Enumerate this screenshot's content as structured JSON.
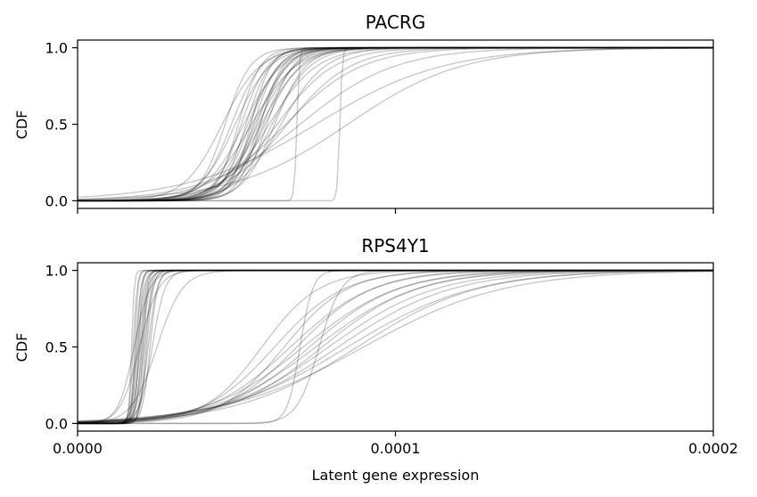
{
  "figure": {
    "xlabel": "Latent gene expression"
  },
  "chart_data": [
    {
      "type": "line",
      "title": "PACRG",
      "ylabel": "CDF",
      "xlabel": "",
      "xlim": [
        0,
        0.0002
      ],
      "ylim": [
        -0.05,
        1.05
      ],
      "xticks": [
        0,
        0.0001,
        0.0002
      ],
      "xtick_labels": [
        "",
        "",
        ""
      ],
      "yticks": [
        0,
        0.5,
        1
      ],
      "ytick_labels": [
        "0.0",
        "0.5",
        "1.0"
      ],
      "line_color": "#000000",
      "line_opacity": 0.2,
      "series_kind": "logistic",
      "series": [
        {
          "mid": 4.64e-05,
          "scale": 4e-06
        },
        {
          "mid": 4.84e-05,
          "scale": 4.8e-06
        },
        {
          "mid": 4.96e-05,
          "scale": 5.5e-06
        },
        {
          "mid": 5.06e-05,
          "scale": 3.5e-06
        },
        {
          "mid": 5.15e-05,
          "scale": 4.2e-06
        },
        {
          "mid": 5.23e-05,
          "scale": 6e-06
        },
        {
          "mid": 5.3e-05,
          "scale": 3.8e-06
        },
        {
          "mid": 5.36e-05,
          "scale": 5e-06
        },
        {
          "mid": 5.42e-05,
          "scale": 4.5e-06
        },
        {
          "mid": 5.48e-05,
          "scale": 7e-06
        },
        {
          "mid": 5.53e-05,
          "scale": 4e-06
        },
        {
          "mid": 5.58e-05,
          "scale": 5.2e-06
        },
        {
          "mid": 5.63e-05,
          "scale": 4.6e-06
        },
        {
          "mid": 5.68e-05,
          "scale": 5.8e-06
        },
        {
          "mid": 5.73e-05,
          "scale": 4.3e-06
        },
        {
          "mid": 5.78e-05,
          "scale": 6.5e-06
        },
        {
          "mid": 5.84e-05,
          "scale": 4.9e-06
        },
        {
          "mid": 5.9e-05,
          "scale": 5.6e-06
        },
        {
          "mid": 5.96e-05,
          "scale": 4.1e-06
        },
        {
          "mid": 6.03e-05,
          "scale": 7.5e-06
        },
        {
          "mid": 6.12e-05,
          "scale": 6e-06
        },
        {
          "mid": 6.2e-05,
          "scale": 5e-06
        },
        {
          "mid": 6.28e-05,
          "scale": 9e-06
        },
        {
          "mid": 6.4e-05,
          "scale": 7e-06
        },
        {
          "mid": 6.55e-05,
          "scale": 1.2e-05
        },
        {
          "mid": 6.6e-05,
          "scale": 1e-05
        },
        {
          "mid": 7e-05,
          "scale": 1.5e-05
        },
        {
          "mid": 7.5e-05,
          "scale": 2e-05
        },
        {
          "mid": 8.5e-05,
          "scale": 1.8e-05
        },
        {
          "mid": 6.9e-05,
          "scale": 4e-07
        },
        {
          "mid": 8.25e-05,
          "scale": 4e-07
        },
        {
          "mid": 4.55e-05,
          "scale": 6e-06
        },
        {
          "mid": 5.45e-05,
          "scale": 3.2e-06
        },
        {
          "mid": 5.75e-05,
          "scale": 3.6e-06
        }
      ]
    },
    {
      "type": "line",
      "title": "RPS4Y1",
      "ylabel": "CDF",
      "xlabel": "Latent gene expression",
      "xlim": [
        0,
        0.0002
      ],
      "ylim": [
        -0.05,
        1.05
      ],
      "xticks": [
        0,
        0.0001,
        0.0002
      ],
      "xtick_labels": [
        "0.0000",
        "0.0001",
        "0.0002"
      ],
      "yticks": [
        0,
        0.5,
        1
      ],
      "ytick_labels": [
        "0.0",
        "0.5",
        "1.0"
      ],
      "line_color": "#000000",
      "line_opacity": 0.2,
      "series_kind": "logistic",
      "series": [
        {
          "mid": 1.7e-05,
          "scale": 4e-07
        },
        {
          "mid": 1.75e-05,
          "scale": 6e-07
        },
        {
          "mid": 1.8e-05,
          "scale": 5e-07
        },
        {
          "mid": 1.83e-05,
          "scale": 8e-07
        },
        {
          "mid": 1.86e-05,
          "scale": 7e-07
        },
        {
          "mid": 1.89e-05,
          "scale": 1e-06
        },
        {
          "mid": 1.92e-05,
          "scale": 6e-07
        },
        {
          "mid": 1.95e-05,
          "scale": 9e-07
        },
        {
          "mid": 1.98e-05,
          "scale": 1.2e-06
        },
        {
          "mid": 2.01e-05,
          "scale": 8e-07
        },
        {
          "mid": 2.04e-05,
          "scale": 1.1e-06
        },
        {
          "mid": 2.07e-05,
          "scale": 7e-07
        },
        {
          "mid": 2.1e-05,
          "scale": 1.3e-06
        },
        {
          "mid": 2.14e-05,
          "scale": 9e-07
        },
        {
          "mid": 2.18e-05,
          "scale": 1e-06
        },
        {
          "mid": 2.22e-05,
          "scale": 1.4e-06
        },
        {
          "mid": 2.28e-05,
          "scale": 1.2e-06
        },
        {
          "mid": 2.35e-05,
          "scale": 2e-06
        },
        {
          "mid": 1.95e-05,
          "scale": 3e-06
        },
        {
          "mid": 1.78e-05,
          "scale": 2.5e-06
        },
        {
          "mid": 2.5e-05,
          "scale": 4e-06
        },
        {
          "mid": 5.8e-05,
          "scale": 9e-06
        },
        {
          "mid": 6.2e-05,
          "scale": 1.1e-05
        },
        {
          "mid": 6.5e-05,
          "scale": 1e-05
        },
        {
          "mid": 6.7e-05,
          "scale": 1.3e-05
        },
        {
          "mid": 6.9e-05,
          "scale": 1.2e-05
        },
        {
          "mid": 7e-05,
          "scale": 2e-06
        },
        {
          "mid": 7.1e-05,
          "scale": 1.5e-05
        },
        {
          "mid": 7.3e-05,
          "scale": 1.4e-05
        },
        {
          "mid": 7.5e-05,
          "scale": 1.6e-05
        },
        {
          "mid": 7.7e-05,
          "scale": 1.5e-05
        },
        {
          "mid": 7.9e-05,
          "scale": 1.7e-05
        },
        {
          "mid": 8.2e-05,
          "scale": 1.8e-05
        },
        {
          "mid": 8.5e-05,
          "scale": 2e-05
        },
        {
          "mid": 8.8e-05,
          "scale": 1.9e-05
        },
        {
          "mid": 9e-05,
          "scale": 2.2e-05
        },
        {
          "mid": 7.6e-05,
          "scale": 3.5e-06
        }
      ]
    }
  ]
}
